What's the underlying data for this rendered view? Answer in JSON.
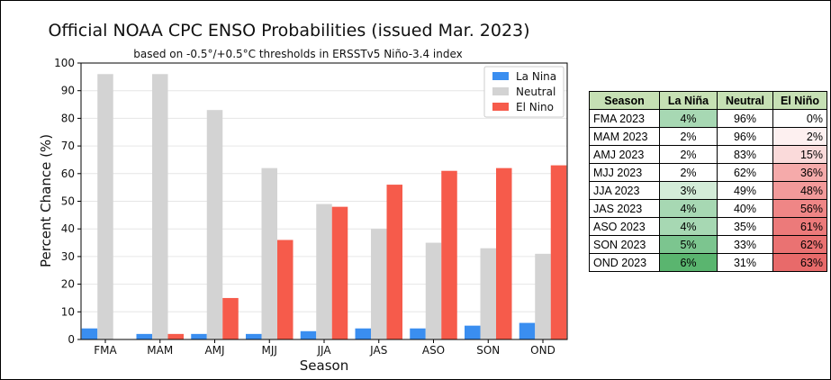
{
  "chart_data": {
    "type": "bar",
    "title": "Official NOAA CPC ENSO Probabilities (issued Mar. 2023)",
    "subtitle": "based on -0.5°/+0.5°C thresholds in ERSSTv5 Niño-3.4 index",
    "xlabel": "Season",
    "ylabel": "Percent Chance (%)",
    "ylim": [
      0,
      100
    ],
    "yticks": [
      "0",
      "10",
      "20",
      "30",
      "40",
      "50",
      "60",
      "70",
      "80",
      "90",
      "100"
    ],
    "grid": true,
    "legend_position": "top-right",
    "categories": [
      "FMA",
      "MAM",
      "AMJ",
      "MJJ",
      "JJA",
      "JAS",
      "ASO",
      "SON",
      "OND"
    ],
    "series": [
      {
        "name": "La Nina",
        "color": "#3a8ef0",
        "values": [
          4,
          2,
          2,
          2,
          3,
          4,
          4,
          5,
          6
        ]
      },
      {
        "name": "Neutral",
        "color": "#d3d3d3",
        "values": [
          96,
          96,
          83,
          62,
          49,
          40,
          35,
          33,
          31
        ]
      },
      {
        "name": "El Nino",
        "color": "#f65b4b",
        "values": [
          0,
          2,
          15,
          36,
          48,
          56,
          61,
          62,
          63
        ]
      }
    ]
  },
  "table": {
    "headers": [
      "Season",
      "La Niña",
      "Neutral",
      "El Niño"
    ],
    "rows": [
      {
        "season": "FMA 2023",
        "la_nina": "4%",
        "neutral": "96%",
        "el_nino": "0%",
        "la_nina_color": "#a7d8b3",
        "el_nino_color": "#ffffff"
      },
      {
        "season": "MAM 2023",
        "la_nina": "2%",
        "neutral": "96%",
        "el_nino": "2%",
        "la_nina_color": "#ffffff",
        "el_nino_color": "#fdf0f0"
      },
      {
        "season": "AMJ 2023",
        "la_nina": "2%",
        "neutral": "83%",
        "el_nino": "15%",
        "la_nina_color": "#ffffff",
        "el_nino_color": "#fadada"
      },
      {
        "season": "MJJ 2023",
        "la_nina": "2%",
        "neutral": "62%",
        "el_nino": "36%",
        "la_nina_color": "#ffffff",
        "el_nino_color": "#f5aaaa"
      },
      {
        "season": "JJA 2023",
        "la_nina": "3%",
        "neutral": "49%",
        "el_nino": "48%",
        "la_nina_color": "#d3ecd8",
        "el_nino_color": "#f29a9a"
      },
      {
        "season": "JAS 2023",
        "la_nina": "4%",
        "neutral": "40%",
        "el_nino": "56%",
        "la_nina_color": "#a7d8b3",
        "el_nino_color": "#ef8686"
      },
      {
        "season": "ASO 2023",
        "la_nina": "4%",
        "neutral": "35%",
        "el_nino": "61%",
        "la_nina_color": "#a7d8b3",
        "el_nino_color": "#ec7a7a"
      },
      {
        "season": "SON 2023",
        "la_nina": "5%",
        "neutral": "33%",
        "el_nino": "62%",
        "la_nina_color": "#7cc58f",
        "el_nino_color": "#ea7272"
      },
      {
        "season": "OND 2023",
        "la_nina": "6%",
        "neutral": "31%",
        "el_nino": "63%",
        "la_nina_color": "#5ab56f",
        "el_nino_color": "#e86a6a"
      }
    ]
  }
}
